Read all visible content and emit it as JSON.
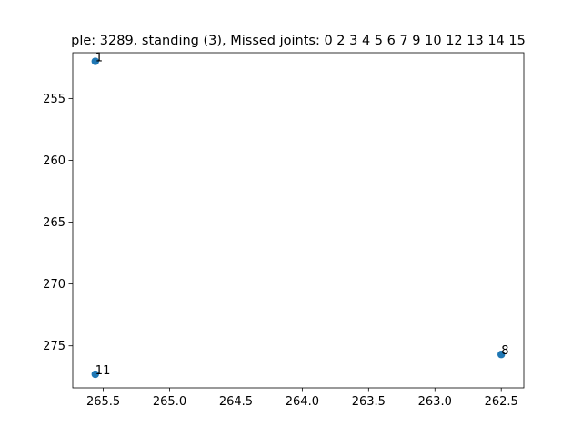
{
  "chart_data": {
    "type": "scatter",
    "title": "ple: 3289, standing (3), Missed joints: 0  2  3  4  5  6  7  9  10  12  13  14  15",
    "xlabel": "",
    "ylabel": "",
    "x_inverted": true,
    "y_inverted": true,
    "xlim": [
      265.73,
      262.33
    ],
    "ylim": [
      278.4,
      251.3
    ],
    "xticks": [
      265.5,
      265.0,
      264.5,
      264.0,
      263.5,
      263.0,
      262.5
    ],
    "xtick_labels": [
      "265.5",
      "265.0",
      "264.5",
      "264.0",
      "263.5",
      "263.0",
      "262.5"
    ],
    "yticks": [
      255,
      260,
      265,
      270,
      275
    ],
    "ytick_labels": [
      "255",
      "260",
      "265",
      "270",
      "275"
    ],
    "grid": false,
    "marker_color": "#1f77b4",
    "points": [
      {
        "label": "1",
        "x": 265.56,
        "y": 252.0
      },
      {
        "label": "8",
        "x": 262.5,
        "y": 275.7
      },
      {
        "label": "11",
        "x": 265.56,
        "y": 277.3
      }
    ]
  }
}
